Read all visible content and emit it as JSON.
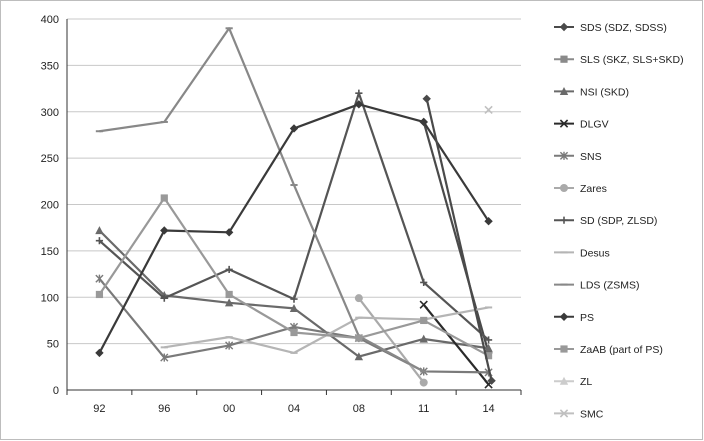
{
  "chart_data": {
    "type": "line",
    "title": "",
    "xlabel": "",
    "ylabel": "",
    "categories": [
      "92",
      "96",
      "00",
      "04",
      "08",
      "11",
      "14"
    ],
    "ylim": [
      0,
      400
    ],
    "yticks": [
      0,
      50,
      100,
      150,
      200,
      250,
      300,
      350,
      400
    ],
    "grid": "horizontal",
    "legend_position": "right",
    "series": [
      {
        "name": "SDS (SDZ, SDSS)",
        "color": "#4a4a4a",
        "marker": "diamond",
        "values": [
          null,
          null,
          null,
          null,
          null,
          289,
          40
        ]
      },
      {
        "name": "SLS (SKZ, SLS+SKD)",
        "color": "#8a8a8a",
        "marker": "square",
        "values": [
          null,
          null,
          null,
          null,
          null,
          null,
          null
        ]
      },
      {
        "name": "NSI (SKD)",
        "color": "#6a6a6a",
        "marker": "triangle",
        "values": [
          172,
          102,
          94,
          88,
          36,
          55,
          45
        ]
      },
      {
        "name": "DLGV",
        "color": "#2a2a2a",
        "marker": "x",
        "values": [
          null,
          null,
          null,
          null,
          null,
          92,
          6
        ]
      },
      {
        "name": "SNS",
        "color": "#7a7a7a",
        "marker": "asterisk",
        "values": [
          120,
          35,
          48,
          68,
          56,
          20,
          19
        ]
      },
      {
        "name": "Zares",
        "color": "#aaaaaa",
        "marker": "circle",
        "values": [
          null,
          null,
          null,
          null,
          99,
          8,
          null
        ]
      },
      {
        "name": "SD (SDP, ZLSD)",
        "color": "#555555",
        "marker": "plus",
        "values": [
          161,
          99,
          130,
          98,
          320,
          116,
          54
        ]
      },
      {
        "name": "Desus",
        "color": "#b5b5b5",
        "marker": "dash",
        "values": [
          null,
          46,
          57,
          40,
          78,
          76,
          89
        ]
      },
      {
        "name": "LDS (ZSMS)",
        "color": "#888888",
        "marker": "dash",
        "values": [
          279,
          289,
          390,
          221,
          58,
          20,
          null
        ]
      },
      {
        "name": "PS",
        "color": "#3a3a3a",
        "marker": "diamond",
        "values": [
          40,
          172,
          170,
          282,
          308,
          289,
          182
        ]
      },
      {
        "name": "ZaAB (part of PS)",
        "color": "#999999",
        "marker": "square",
        "values": [
          103,
          207,
          103,
          62,
          56,
          75,
          37
        ]
      },
      {
        "name": "ZL",
        "color": "#cccccc",
        "marker": "triangle",
        "values": [
          null,
          null,
          null,
          null,
          null,
          null,
          null
        ]
      },
      {
        "name": "SMC",
        "color": "#c0c0c0",
        "marker": "x",
        "values": [
          null,
          null,
          null,
          null,
          null,
          null,
          302
        ]
      }
    ],
    "extra_segments": [
      {
        "series": "SDS (SDZ, SDSS)",
        "points": [
          [
            5,
            314
          ],
          [
            6,
            10
          ]
        ]
      }
    ]
  }
}
